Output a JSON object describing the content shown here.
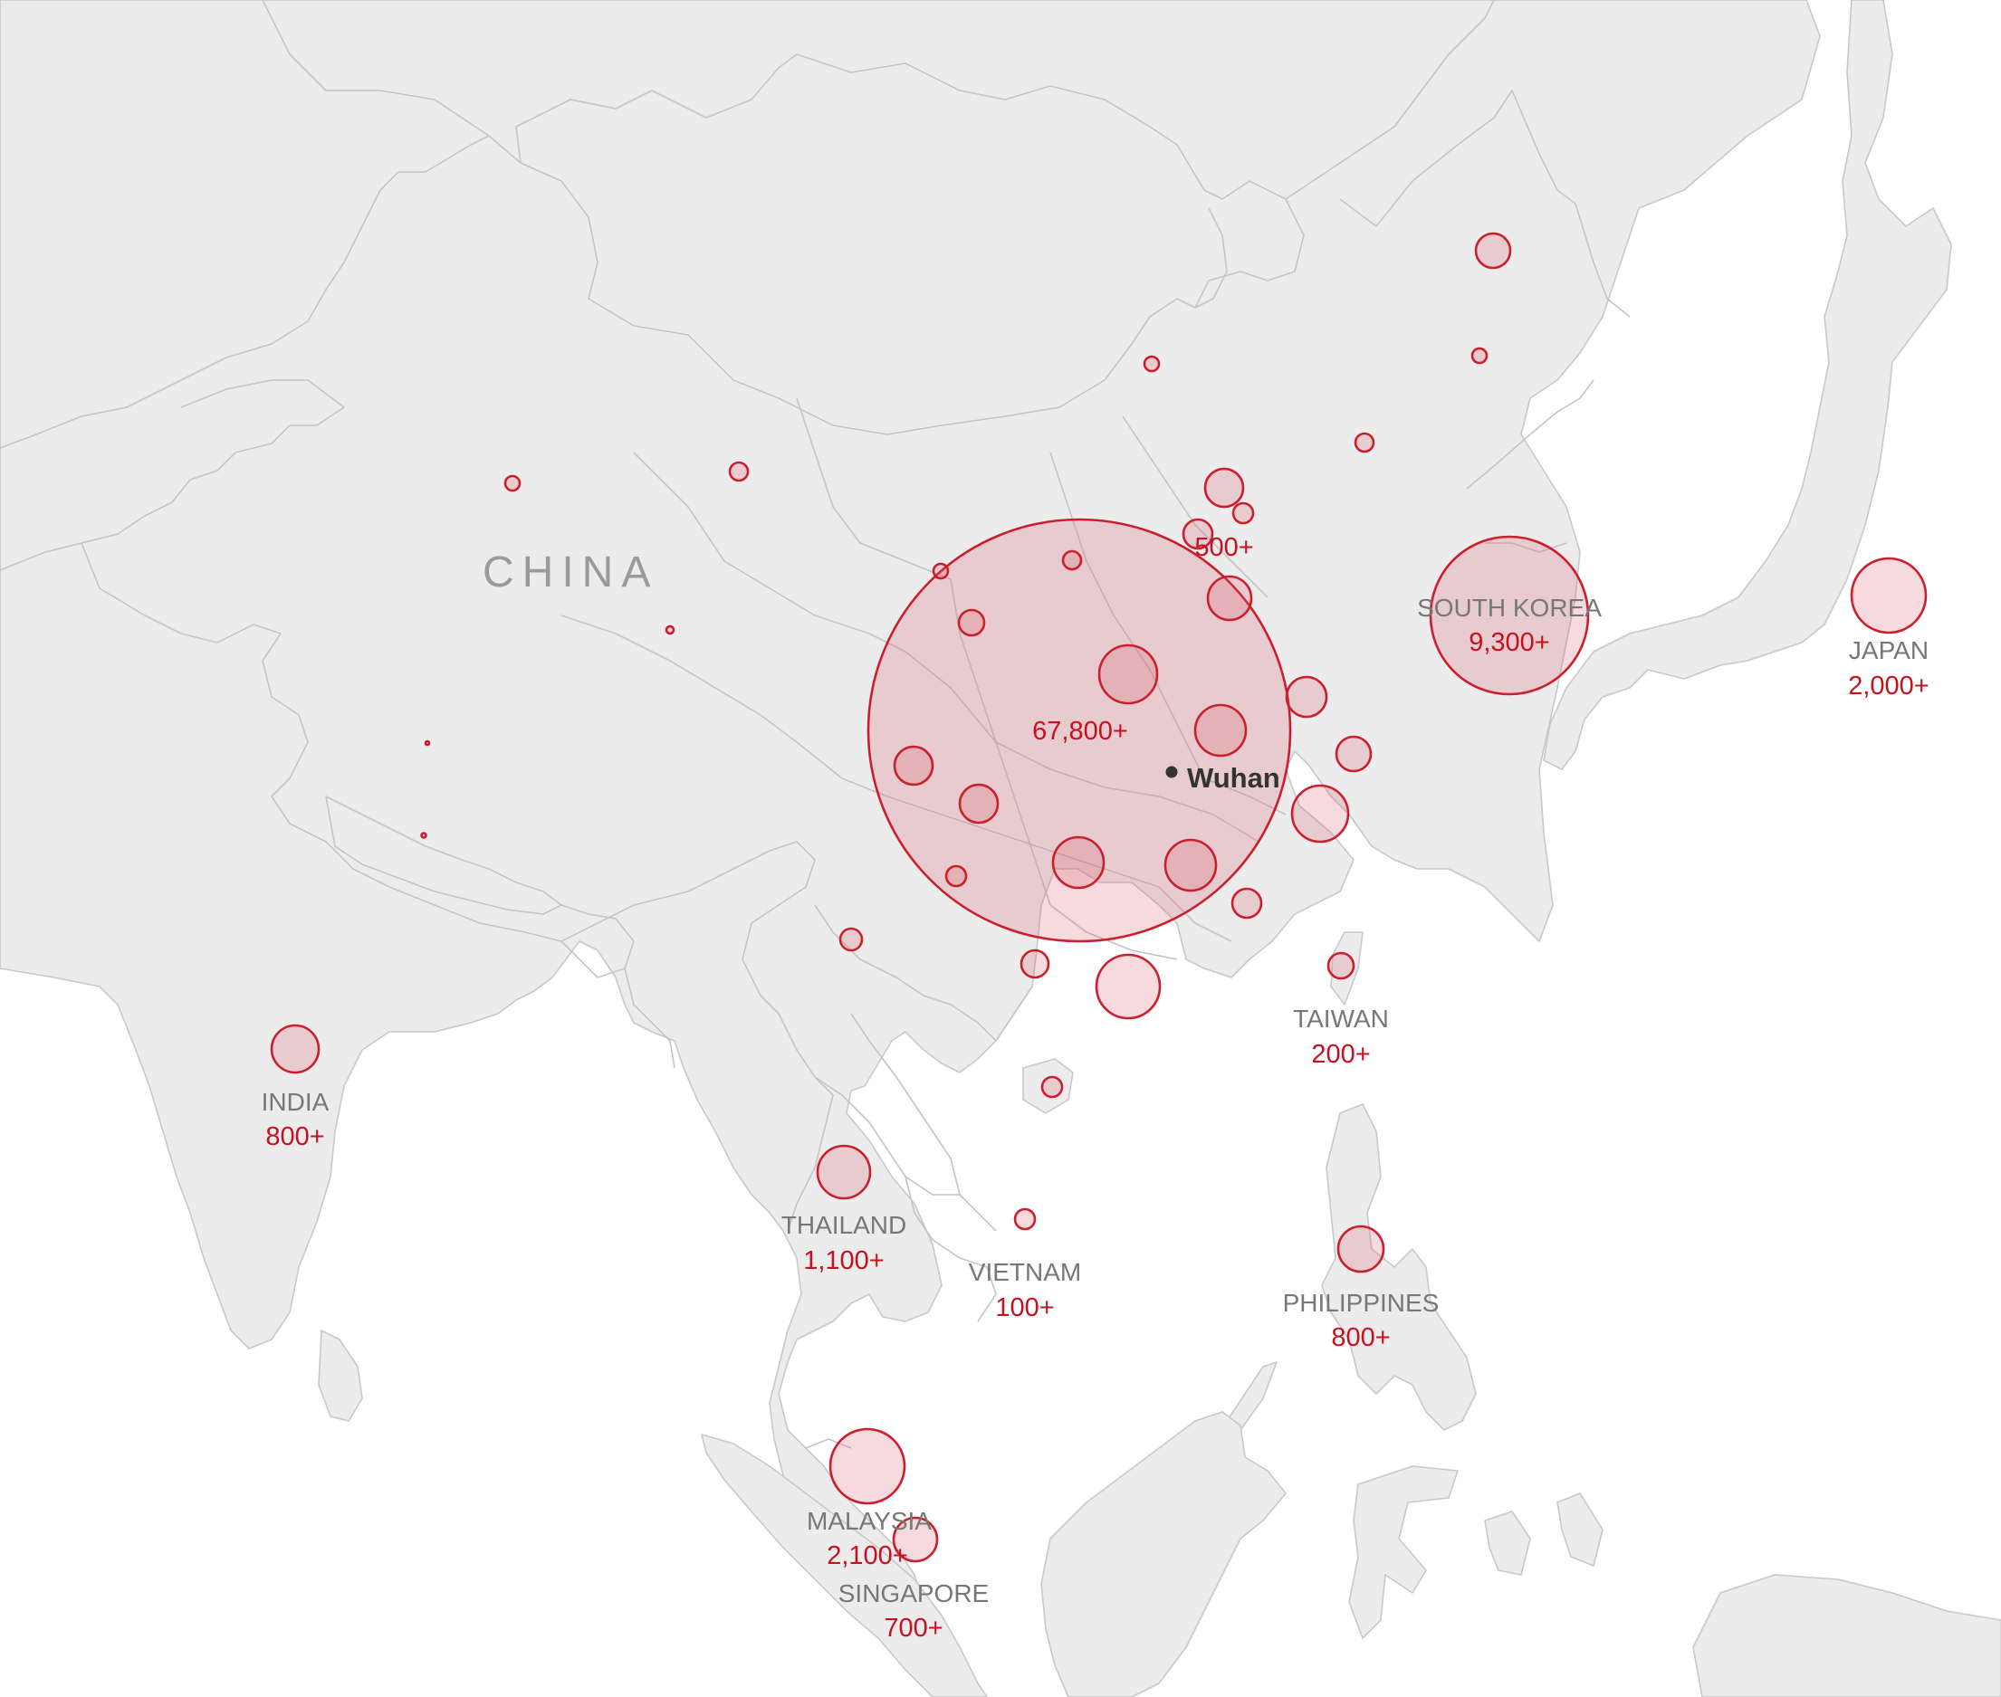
{
  "map": {
    "region_label": "CHINA",
    "city": {
      "name": "Wuhan",
      "icon": "city-dot-icon"
    },
    "colors": {
      "land": "#ececec",
      "border": "#c4c4c4",
      "bubble_stroke": "#cc1f2e",
      "bubble_fill": "#f2d0d3",
      "count_text": "#c8101e",
      "name_text": "#777777"
    },
    "labels": {
      "china_total": "67,800+",
      "beijing_count": "500+",
      "south_korea": {
        "name": "SOUTH KOREA",
        "count": "9,300+"
      },
      "japan": {
        "name": "JAPAN",
        "count": "2,000+"
      },
      "taiwan": {
        "name": "TAIWAN",
        "count": "200+"
      },
      "india": {
        "name": "INDIA",
        "count": "800+"
      },
      "thailand": {
        "name": "THAILAND",
        "count": "1,100+"
      },
      "vietnam": {
        "name": "VIETNAM",
        "count": "100+"
      },
      "philippines": {
        "name": "PHILIPPINES",
        "count": "800+"
      },
      "malaysia": {
        "name": "MALAYSIA",
        "count": "2,100+"
      },
      "singapore": {
        "name": "SINGAPORE",
        "count": "700+"
      }
    }
  }
}
